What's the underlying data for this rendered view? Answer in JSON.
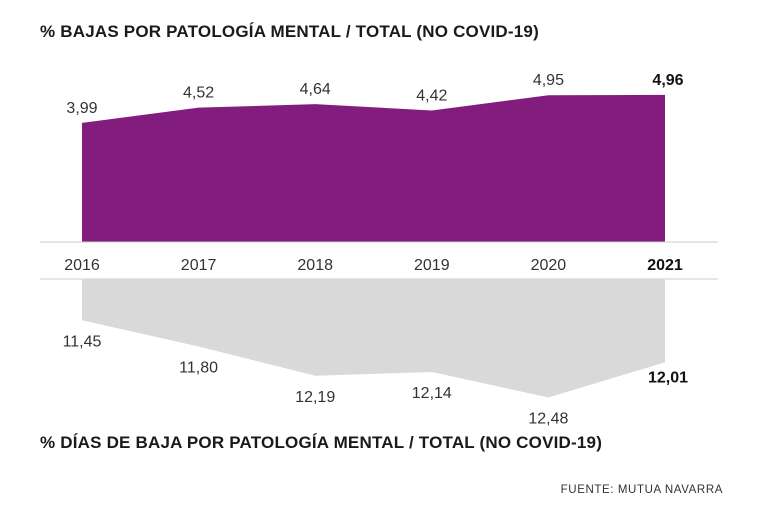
{
  "titles": {
    "top": "% BAJAS POR PATOLOGÍA MENTAL / TOTAL (NO COVID-19)",
    "bottom": "% DÍAS DE BAJA POR PATOLOGÍA MENTAL / TOTAL (NO COVID-19)"
  },
  "source": "FUENTE: MUTUA NAVARRA",
  "chart_data": [
    {
      "type": "area",
      "title": "% BAJAS POR PATOLOGÍA MENTAL / TOTAL (NO COVID-19)",
      "x": [
        "2016",
        "2017",
        "2018",
        "2019",
        "2020",
        "2021"
      ],
      "values": [
        3.99,
        4.52,
        4.64,
        4.42,
        4.95,
        4.96
      ],
      "labels": [
        "3,99",
        "4,52",
        "4,64",
        "4,42",
        "4,95",
        "4,96"
      ],
      "ylim": [
        0,
        5.2
      ],
      "color": "#821d7d",
      "direction": "up",
      "highlight_last": true
    },
    {
      "type": "area",
      "title": "% DÍAS DE BAJA POR PATOLOGÍA MENTAL / TOTAL (NO COVID-19)",
      "x": [
        "2016",
        "2017",
        "2018",
        "2019",
        "2020",
        "2021"
      ],
      "values": [
        11.45,
        11.8,
        12.19,
        12.14,
        12.48,
        12.01
      ],
      "labels": [
        "11,45",
        "11,80",
        "12,19",
        "12,14",
        "12,48",
        "12,01"
      ],
      "color": "#d9d9d9",
      "direction": "down",
      "highlight_last": true
    }
  ],
  "colors": {
    "axis": "#cccccc",
    "text": "#333333"
  }
}
